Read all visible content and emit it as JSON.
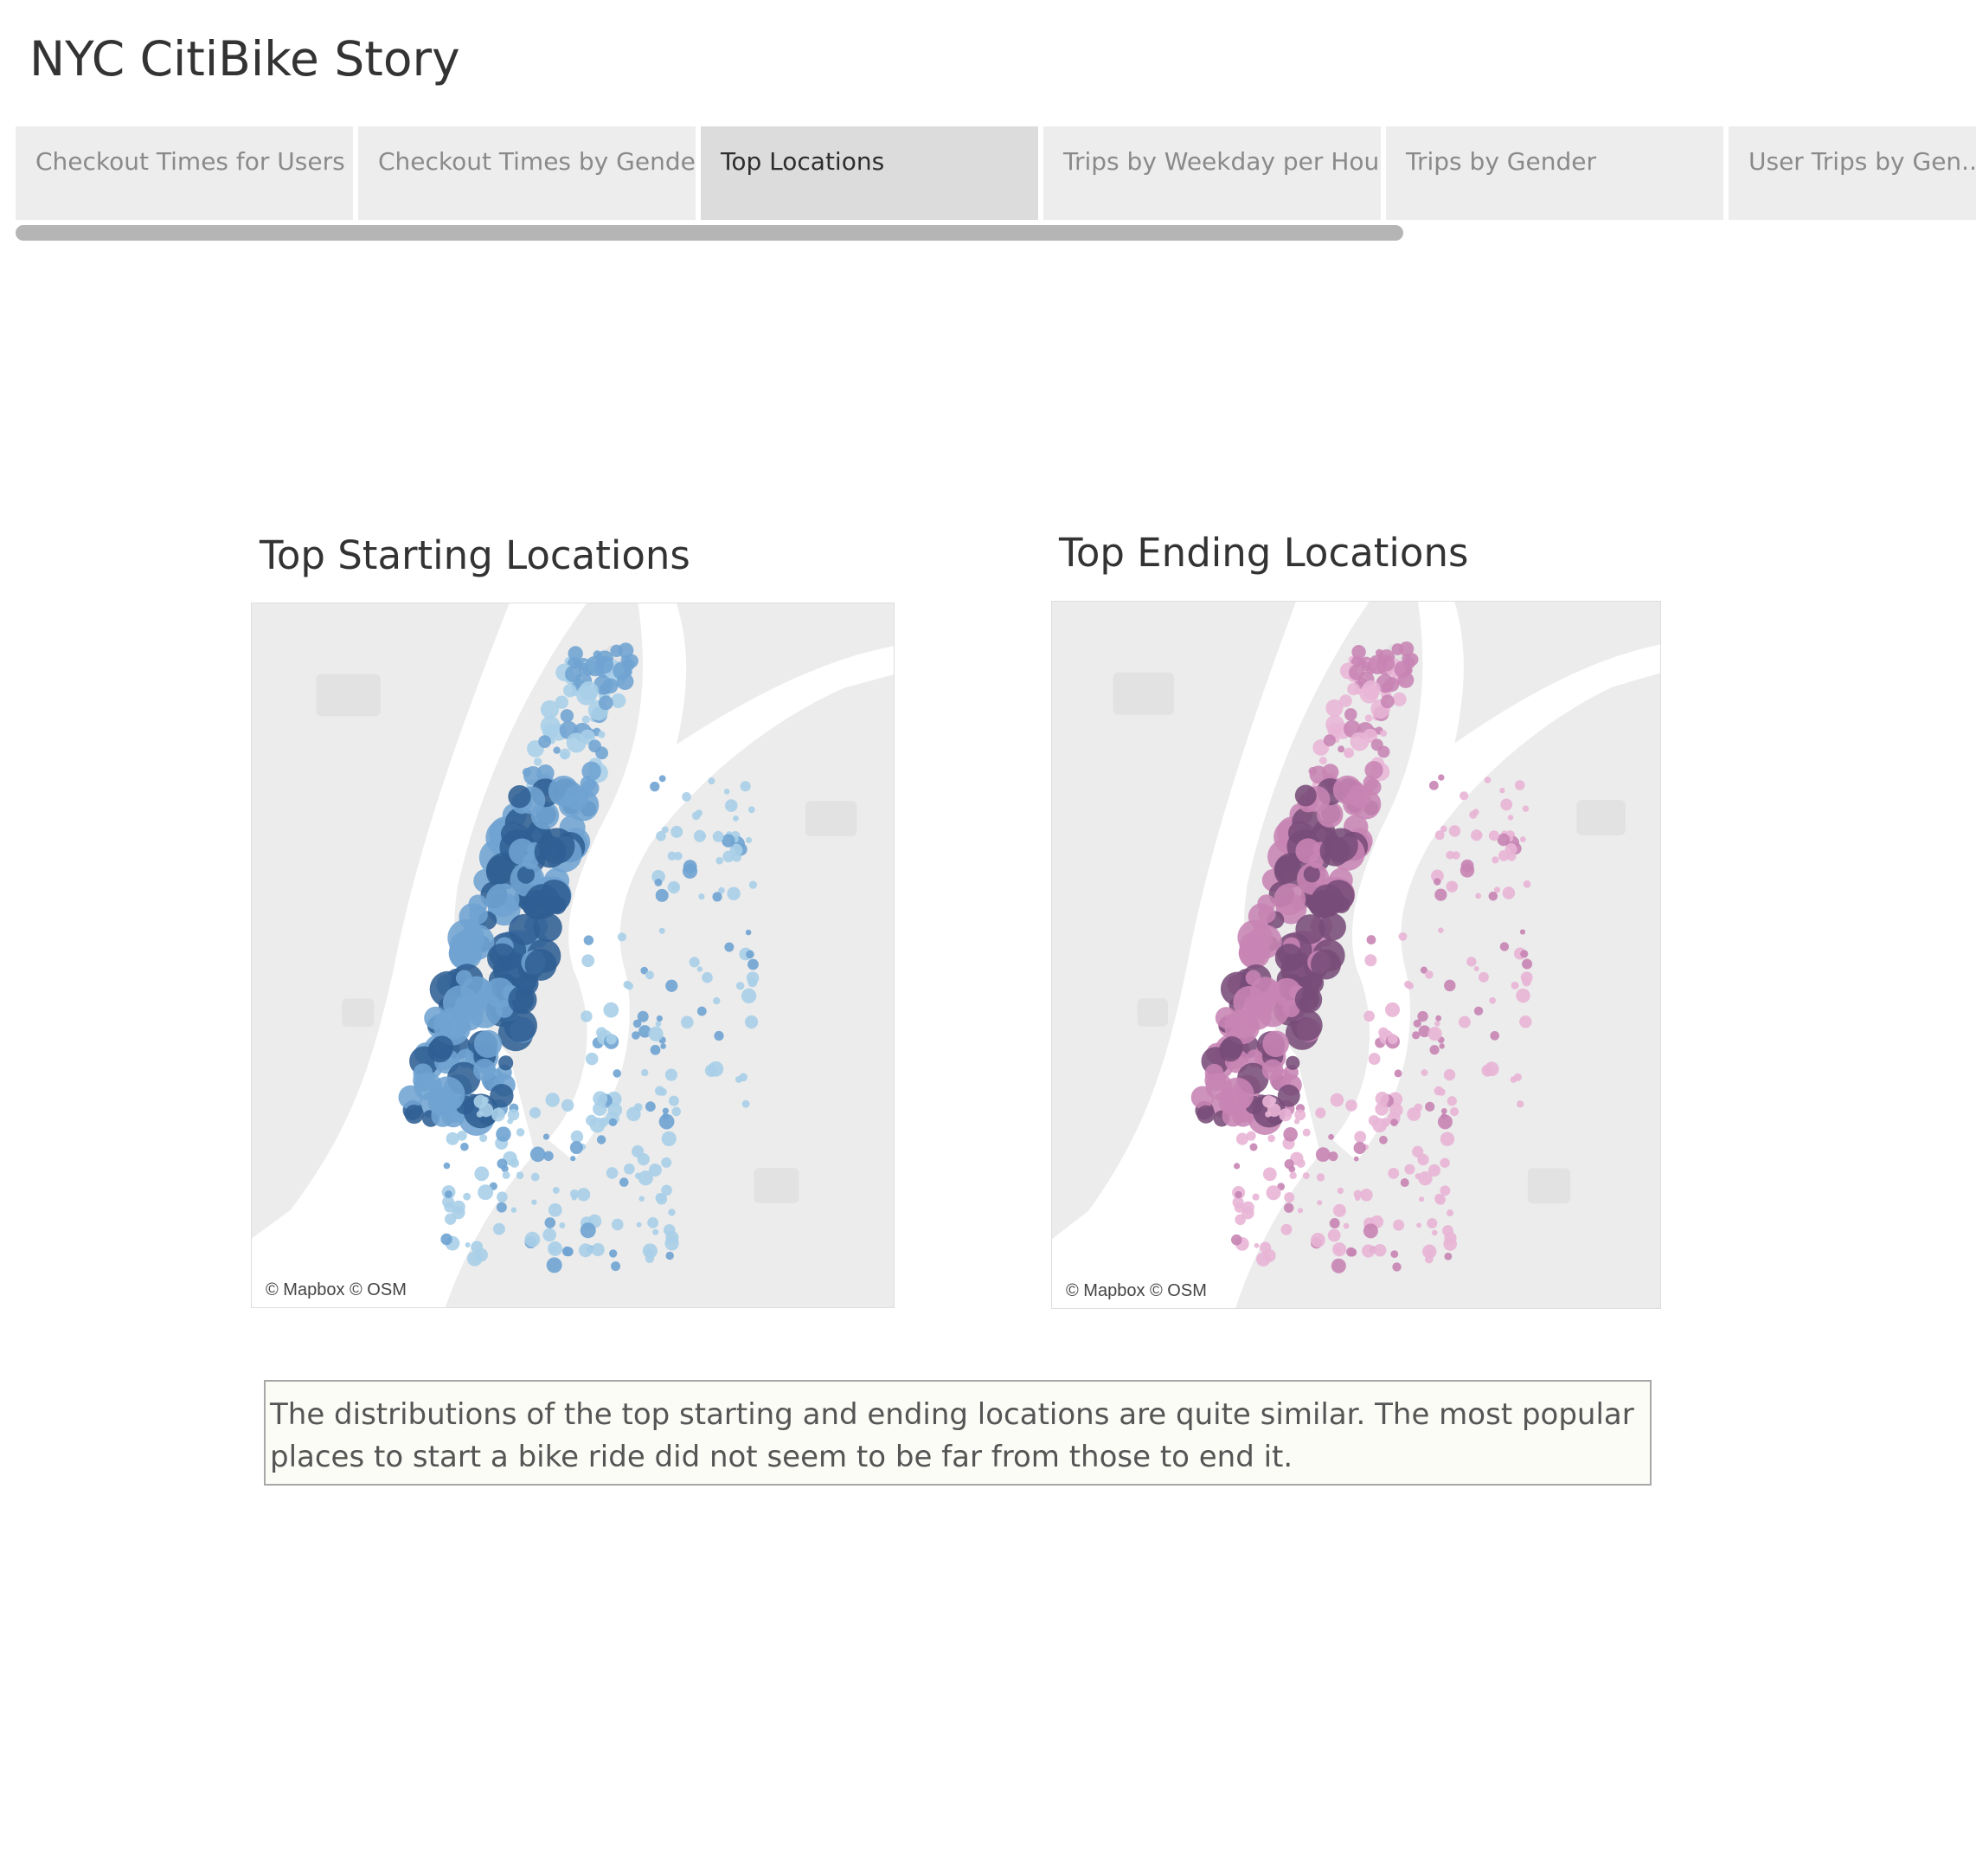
{
  "story": {
    "title": "NYC CitiBike Story"
  },
  "tabs": [
    {
      "label": "Checkout Times for Users",
      "active": false
    },
    {
      "label": "Checkout Times by Gender",
      "active": false
    },
    {
      "label": "Top Locations",
      "active": true
    },
    {
      "label": "Trips by Weekday per Hour",
      "active": false
    },
    {
      "label": "Trips by Gender",
      "active": false
    },
    {
      "label": "User Trips by Gen..",
      "active": false
    }
  ],
  "maps": [
    {
      "title": "Top Starting Locations",
      "attribution": "© Mapbox © OSM",
      "palette": {
        "light": "#a9cfe8",
        "mid": "#6fa3d2",
        "dark": "#2f5f93"
      }
    },
    {
      "title": "Top Ending Locations",
      "attribution": "© Mapbox © OSM",
      "palette": {
        "light": "#e8b5d6",
        "mid": "#c784b4",
        "dark": "#774c79"
      }
    }
  ],
  "caption": {
    "text": "The distributions of the top starting and ending locations are quite similar. The most popular places to start a bike ride did not seem to be far from those to end it."
  }
}
